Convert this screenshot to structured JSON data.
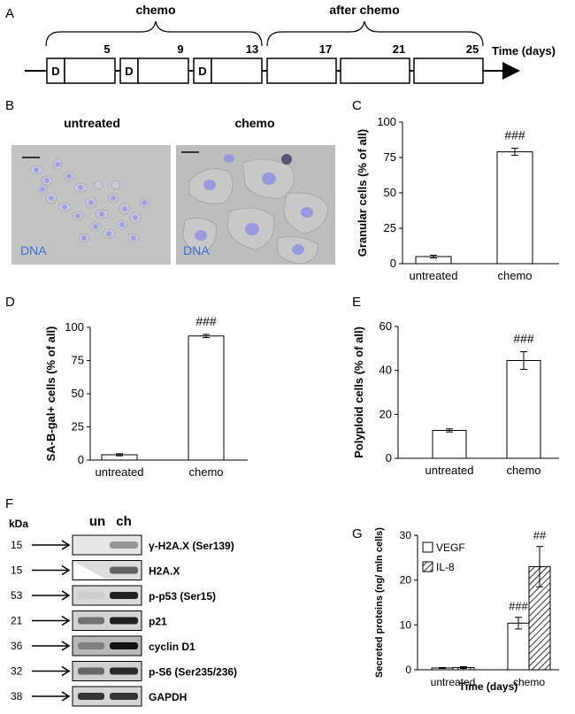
{
  "panels": [
    "A",
    "B",
    "C",
    "D",
    "E",
    "F",
    "G"
  ],
  "timeline": {
    "chemo_label": "chemo",
    "after_label": "after chemo",
    "time_label": "Time (days)",
    "dose_label": "D",
    "days": [
      "5",
      "9",
      "13",
      "17",
      "21",
      "25"
    ]
  },
  "micrographs": {
    "untreated_title": "untreated",
    "chemo_title": "chemo",
    "stain_label": "DNA",
    "colors": {
      "background": "#bdbdbd",
      "nuclei": "#8e8ee6"
    }
  },
  "blot": {
    "kda_label": "kDa",
    "lane_labels": [
      "un",
      "ch"
    ],
    "rows": [
      {
        "kda": "15",
        "label": "γ-H2A.X (Ser139)"
      },
      {
        "kda": "15",
        "label": "H2A.X"
      },
      {
        "kda": "53",
        "label": "p-p53 (Ser15)"
      },
      {
        "kda": "21",
        "label": "p21"
      },
      {
        "kda": "36",
        "label": "cyclin D1"
      },
      {
        "kda": "32",
        "label": "p-S6 (Ser235/236)"
      },
      {
        "kda": "38",
        "label": "GAPDH"
      }
    ]
  },
  "chart_data": [
    {
      "panel": "C",
      "type": "bar",
      "categories": [
        "untreated",
        "chemo"
      ],
      "values": [
        5,
        79
      ],
      "errors": [
        1,
        2.5
      ],
      "ylabel": "Granular cells (% of all)",
      "ylim": [
        0,
        100
      ],
      "yticks": [
        0,
        25,
        50,
        75,
        100
      ],
      "annotations": [
        {
          "category": "chemo",
          "text": "###"
        }
      ]
    },
    {
      "panel": "D",
      "type": "bar",
      "categories": [
        "untreated",
        "chemo"
      ],
      "values": [
        4,
        93.5
      ],
      "errors": [
        0.8,
        1.2
      ],
      "ylabel": "SA-B-gal+ cells (% of all)",
      "ylim": [
        0,
        100
      ],
      "yticks": [
        0,
        25,
        50,
        75,
        100
      ],
      "annotations": [
        {
          "category": "chemo",
          "text": "###"
        }
      ]
    },
    {
      "panel": "E",
      "type": "bar",
      "categories": [
        "untreated",
        "chemo"
      ],
      "values": [
        12.7,
        44.5
      ],
      "errors": [
        0.7,
        4
      ],
      "ylabel": "Polyploid cells (% of all)",
      "ylim": [
        0,
        60
      ],
      "yticks": [
        0,
        20,
        40,
        60
      ],
      "annotations": [
        {
          "category": "chemo",
          "text": "###"
        }
      ]
    },
    {
      "panel": "G",
      "type": "bar",
      "categories": [
        "untreated",
        "chemo"
      ],
      "series": [
        {
          "name": "VEGF",
          "values": [
            0.4,
            10.4
          ],
          "errors": [
            0.1,
            1.3
          ]
        },
        {
          "name": "IL-8",
          "values": [
            0.5,
            23
          ],
          "errors": [
            0.2,
            4.5
          ]
        }
      ],
      "ylabel": "Secreted proteins (ng/ mln cells)",
      "xlabel": "Time (days)",
      "ylim": [
        0,
        30
      ],
      "yticks": [
        0,
        10,
        20,
        30
      ],
      "legend": "top-left",
      "annotations": [
        {
          "category": "chemo",
          "series": "VEGF",
          "text": "###"
        },
        {
          "category": "chemo",
          "series": "IL-8",
          "text": "##"
        }
      ]
    }
  ]
}
